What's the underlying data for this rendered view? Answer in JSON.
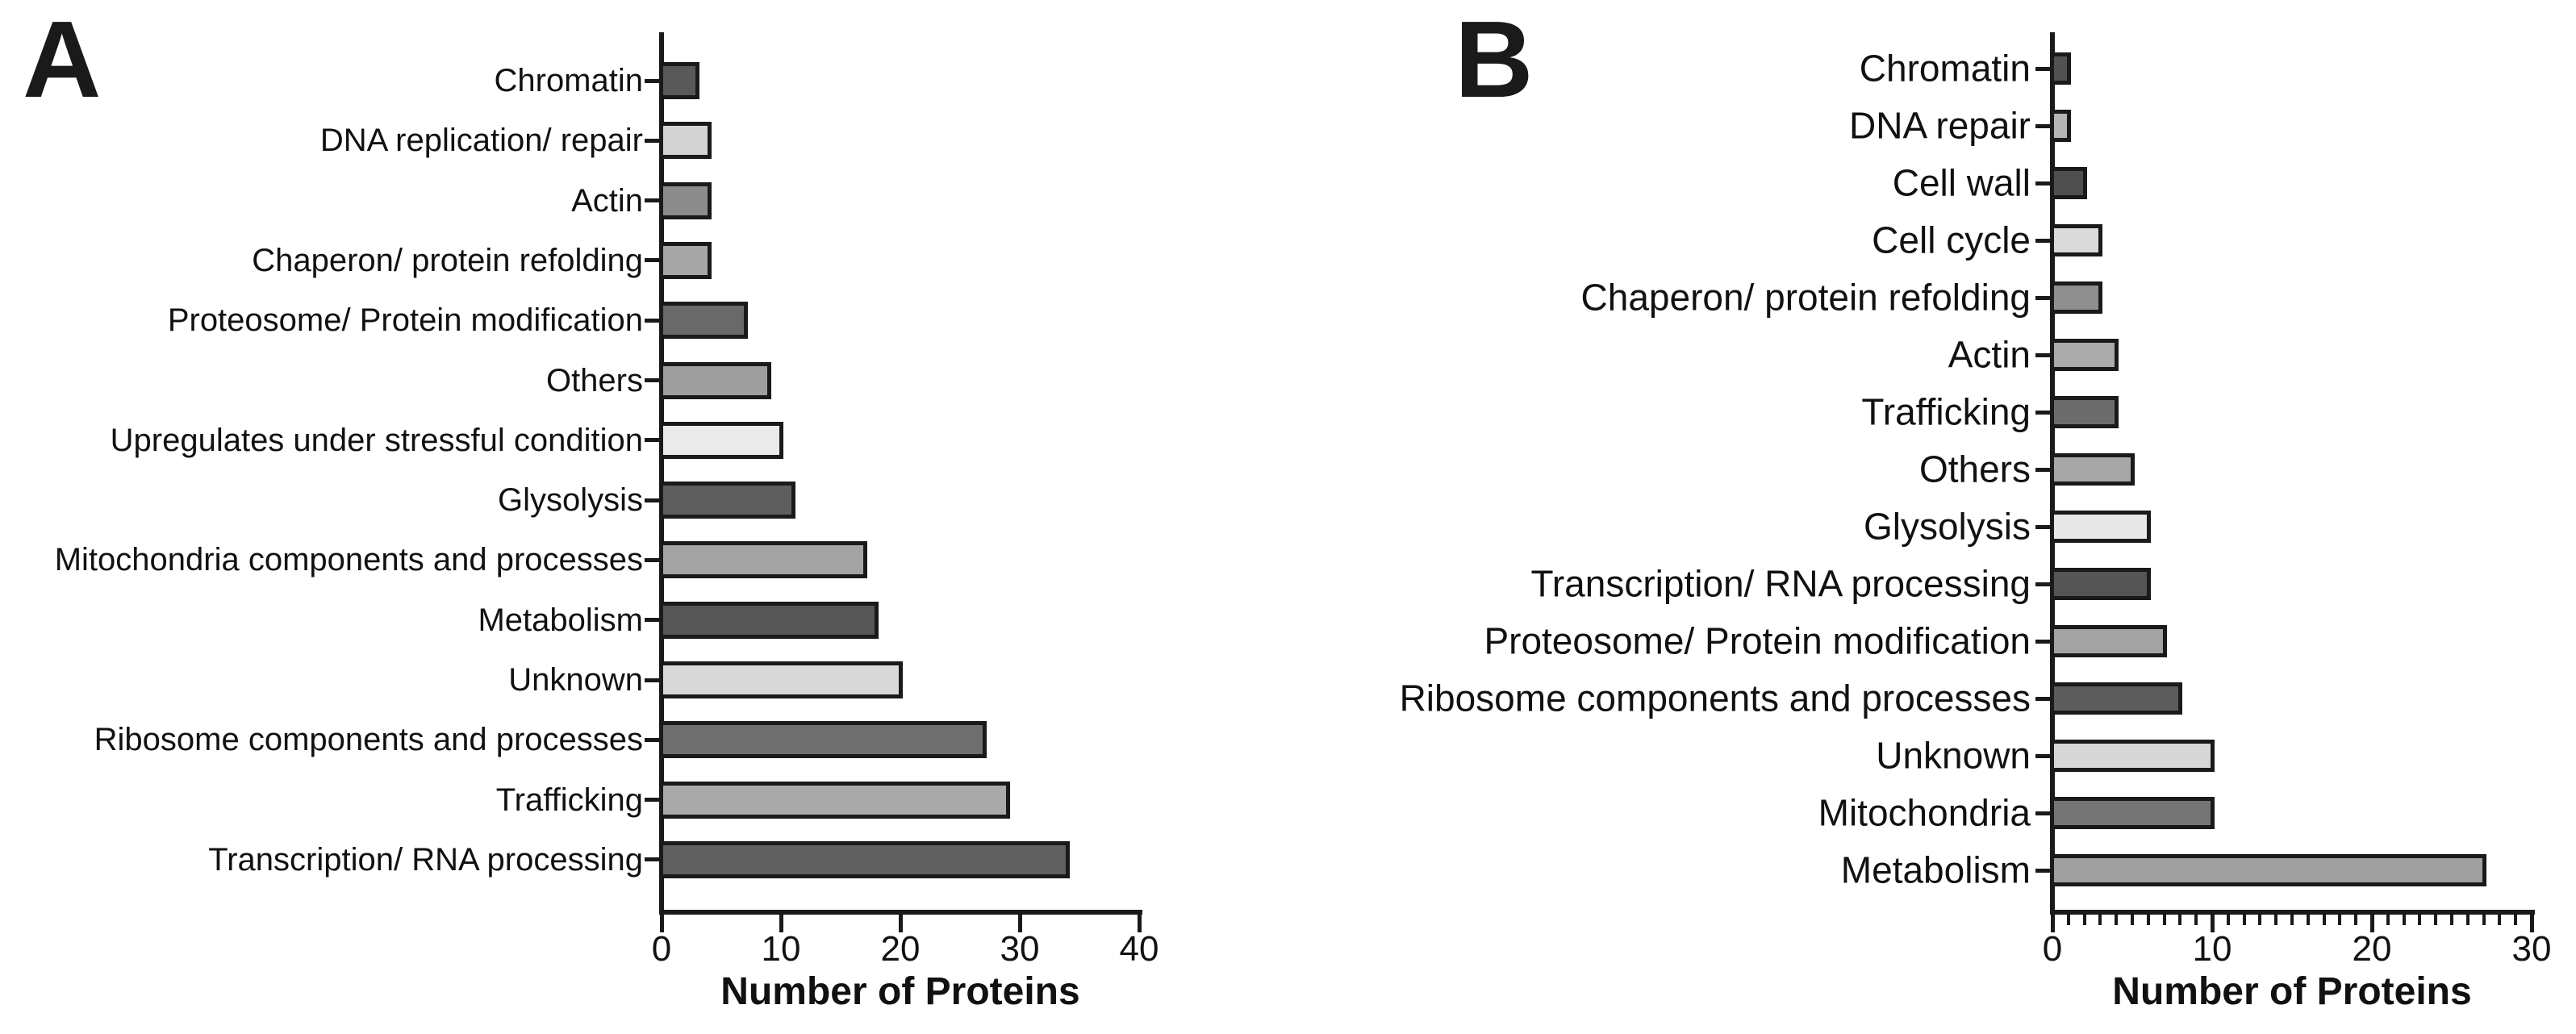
{
  "figure": {
    "background_color": "#ffffff",
    "ink_color": "#1a1a1a"
  },
  "panels": [
    {
      "label": "A"
    },
    {
      "label": "B"
    }
  ],
  "chart_data": [
    {
      "type": "bar",
      "orientation": "horizontal",
      "panel": "A",
      "title": "",
      "xlabel": "Number of Proteins",
      "ylabel": "",
      "xlim": [
        0,
        40
      ],
      "xticks": [
        0,
        10,
        20,
        30,
        40
      ],
      "minor_tick_step": null,
      "grid": false,
      "legend": null,
      "bar_border_color": "#1a1a1a",
      "categories": [
        "Chromatin",
        "DNA replication/ repair",
        "Actin",
        "Chaperon/ protein refolding",
        "Proteosome/ Protein modification",
        "Others",
        "Upregulates under stressful condition",
        "Glysolysis",
        "Mitochondria components and processes",
        "Metabolism",
        "Unknown",
        "Ribosome components and processes",
        "Trafficking",
        "Transcription/ RNA processing"
      ],
      "values": [
        3,
        4,
        4,
        4,
        7,
        9,
        10,
        11,
        17,
        18,
        20,
        27,
        29,
        34
      ],
      "bar_colors": [
        "#595959",
        "#d3d3d3",
        "#8c8c8c",
        "#a6a6a6",
        "#696969",
        "#9e9e9e",
        "#eaeaea",
        "#5e5e5e",
        "#a4a4a4",
        "#565656",
        "#d9d9d9",
        "#6f6f6f",
        "#a9a9a9",
        "#606060"
      ]
    },
    {
      "type": "bar",
      "orientation": "horizontal",
      "panel": "B",
      "title": "",
      "xlabel": "Number of Proteins",
      "ylabel": "",
      "xlim": [
        0,
        30
      ],
      "xticks": [
        0,
        10,
        20,
        30
      ],
      "minor_tick_step": 1,
      "grid": false,
      "legend": null,
      "bar_border_color": "#1a1a1a",
      "categories": [
        "Chromatin",
        "DNA repair",
        "Cell wall",
        "Cell cycle",
        "Chaperon/ protein refolding",
        "Actin",
        "Trafficking",
        "Others",
        "Glysolysis",
        "Transcription/ RNA processing",
        "Proteosome/ Protein modification",
        "Ribosome components and processes",
        "Unknown",
        "Mitochondria",
        "Metabolism"
      ],
      "values": [
        1,
        1,
        2,
        3,
        3,
        4,
        4,
        5,
        6,
        6,
        7,
        8,
        10,
        10,
        27
      ],
      "bar_colors": [
        "#525252",
        "#b5b5b5",
        "#4f4f4f",
        "#dadada",
        "#8f8f8f",
        "#ababab",
        "#6c6c6c",
        "#a7a7a7",
        "#e8e8e8",
        "#555555",
        "#a3a3a3",
        "#5c5c5c",
        "#d7d7d7",
        "#757575",
        "#a0a0a0"
      ]
    }
  ]
}
